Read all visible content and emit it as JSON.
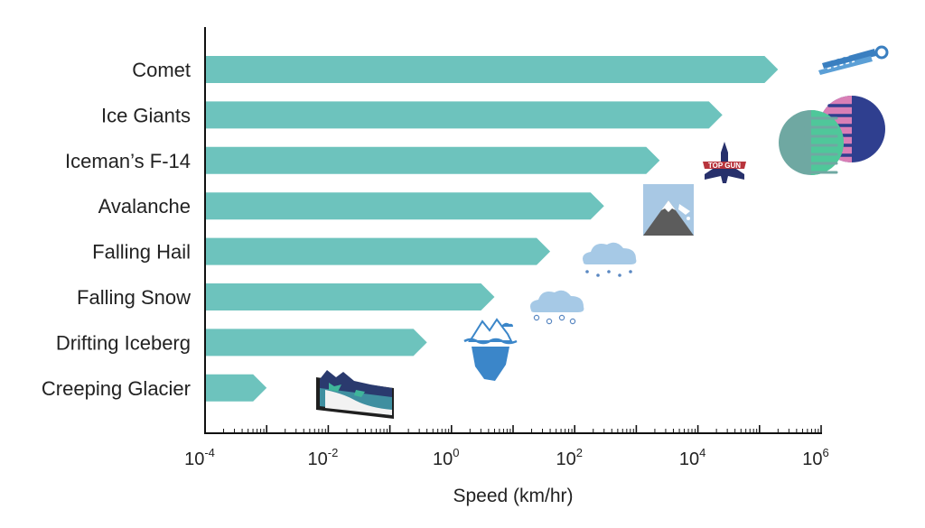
{
  "chart_data": {
    "type": "bar",
    "orientation": "horizontal",
    "scale": "log",
    "xlabel": "Speed (km/hr)",
    "xlim_exponents": [
      -4,
      6
    ],
    "tick_base": "10",
    "tick_exponents": [
      "-4",
      "-2",
      "0",
      "2",
      "4",
      "6"
    ],
    "categories": [
      "Comet",
      "Ice Giants",
      "Iceman’s F-14",
      "Avalanche",
      "Falling Hail",
      "Falling Snow",
      "Drifting Iceberg",
      "Creeping Glacier"
    ],
    "values": [
      200000,
      25000,
      2400,
      300,
      40,
      5,
      0.4,
      0.001
    ],
    "icons": [
      "comet-icon",
      "ice-giants-icon",
      "fighter-jet-icon",
      "avalanche-mountain-icon",
      "hail-cloud-icon",
      "snow-cloud-icon",
      "iceberg-icon",
      "glacier-icon"
    ],
    "jet_badge_text": "TOP GUN",
    "bar_color": "#6dc3bd"
  }
}
